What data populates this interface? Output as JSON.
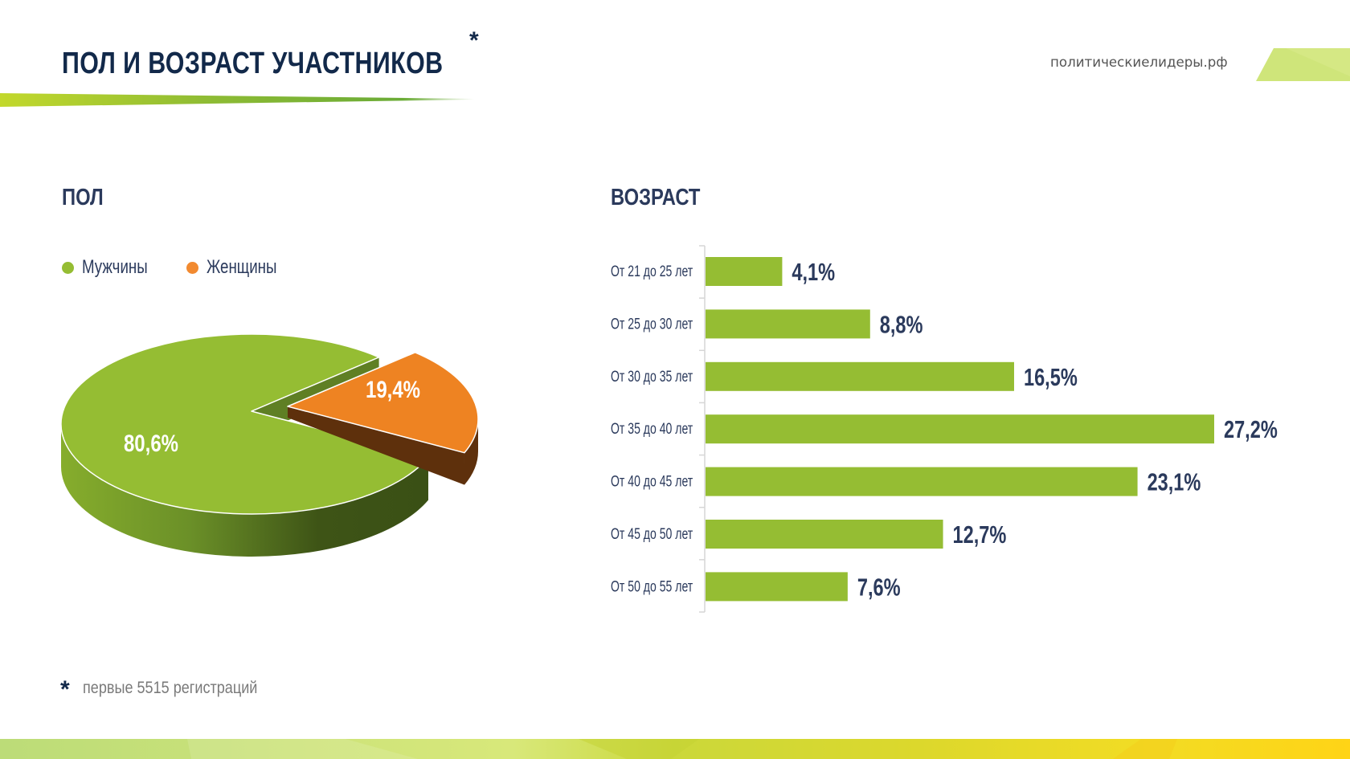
{
  "header": {
    "title": "ПОЛ И ВОЗРАСТ УЧАСТНИКОВ",
    "title_marker": "*",
    "site": "политическиелидеры.рф"
  },
  "sections": {
    "sex_heading": "ПОЛ",
    "age_heading": "ВОЗРАСТ"
  },
  "footnote": {
    "marker": "*",
    "text": "первые 5515 регистраций"
  },
  "colors": {
    "navy": "#12294a",
    "label": "#2b3a5c",
    "green": "#95bd33",
    "orange": "#ee8322",
    "legend_orange": "#f28a30"
  },
  "chart_data": [
    {
      "type": "pie",
      "title": "ПОЛ",
      "legend_position": "top-left",
      "style": "3d-exploded",
      "slices": [
        {
          "label": "Мужчины",
          "value": 80.6,
          "value_label": "80,6%",
          "color": "#95bd33"
        },
        {
          "label": "Женщины",
          "value": 19.4,
          "value_label": "19,4%",
          "color": "#ee8322"
        }
      ]
    },
    {
      "type": "bar",
      "orientation": "horizontal",
      "title": "ВОЗРАСТ",
      "xlabel": "",
      "ylabel": "",
      "xlim": [
        0,
        27.2
      ],
      "grid": false,
      "categories": [
        "От 21 до 25 лет",
        "От 25 до 30 лет",
        "От 30 до 35 лет",
        "От 35 до 40 лет",
        "От 40 до 45 лет",
        "От 45 до 50 лет",
        "От 50 до 55 лет"
      ],
      "values": [
        4.1,
        8.8,
        16.5,
        27.2,
        23.1,
        12.7,
        7.6
      ],
      "value_labels": [
        "4,1%",
        "8,8%",
        "16,5%",
        "27,2%",
        "23,1%",
        "12,7%",
        "7,6%"
      ],
      "color": "#95bd33"
    }
  ]
}
